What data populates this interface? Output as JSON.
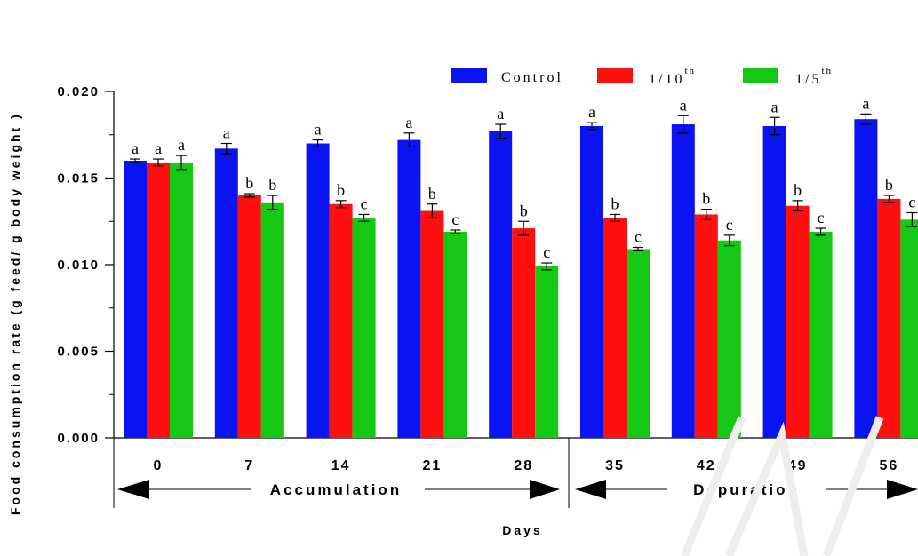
{
  "chart_data": {
    "type": "bar",
    "categories": [
      "0",
      "7",
      "14",
      "21",
      "28",
      "35",
      "42",
      "49",
      "56"
    ],
    "series": [
      {
        "name": "Control",
        "color": "#0a14f0",
        "values": [
          0.016,
          0.0167,
          0.017,
          0.0172,
          0.0177,
          0.018,
          0.0181,
          0.018,
          0.0184
        ],
        "errors": [
          0.0001,
          0.0003,
          0.0002,
          0.0004,
          0.0004,
          0.0002,
          0.0005,
          0.0005,
          0.0003
        ],
        "sig": [
          "a",
          "a",
          "a",
          "a",
          "a",
          "a",
          "a",
          "a",
          "a"
        ]
      },
      {
        "name": "1/10",
        "sup": "th",
        "color": "#ff0f0f",
        "values": [
          0.0159,
          0.014,
          0.0135,
          0.0131,
          0.0121,
          0.0127,
          0.0129,
          0.0134,
          0.0138
        ],
        "errors": [
          0.0002,
          0.0001,
          0.0002,
          0.0004,
          0.0004,
          0.0002,
          0.0003,
          0.0003,
          0.0002
        ],
        "sig": [
          "a",
          "b",
          "b",
          "b",
          "b",
          "b",
          "b",
          "b",
          "b"
        ]
      },
      {
        "name": "1/5",
        "sup": "th",
        "color": "#14c814",
        "values": [
          0.0159,
          0.0136,
          0.0127,
          0.0119,
          0.0099,
          0.0109,
          0.0114,
          0.0119,
          0.0126
        ],
        "errors": [
          0.0004,
          0.0004,
          0.0002,
          0.0001,
          0.0002,
          0.0001,
          0.0003,
          0.0002,
          0.0004
        ],
        "sig": [
          "a",
          "b",
          "c",
          "c",
          "c",
          "c",
          "c",
          "c",
          "c"
        ]
      }
    ],
    "ylabel": "Food consumption rate (g feed/ g body weight )",
    "xlabel": "Days",
    "ylim": [
      0,
      0.02
    ],
    "yticks": [
      "0.000",
      "0.005",
      "0.010",
      "0.015",
      "0.020"
    ],
    "legend_position": "top-right",
    "phases": [
      {
        "label": "Accumulation",
        "from_category": "0",
        "to_category": "28"
      },
      {
        "label": "Depuration",
        "from_category": "35",
        "to_category": "56"
      }
    ],
    "grid": false
  }
}
